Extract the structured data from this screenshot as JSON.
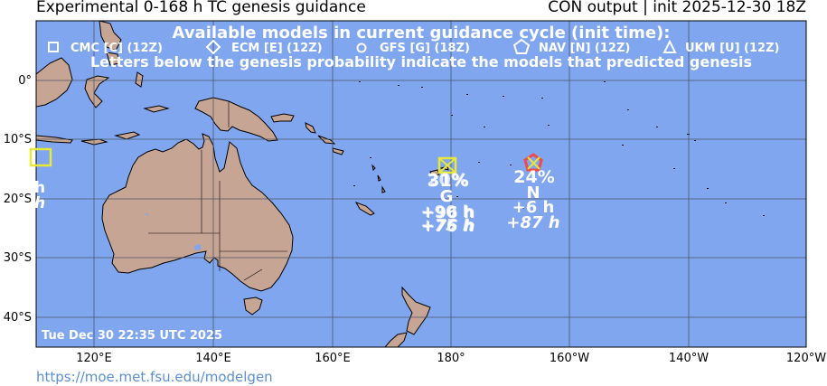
{
  "header": {
    "title": "Experimental 0-168 h TC genesis guidance",
    "subtitle": "CON output | init 2025-12-30 18Z"
  },
  "legend": {
    "heading": "Available models in current guidance cycle (init time):",
    "models": [
      {
        "symbol": "square",
        "label": "CMC [C] (12Z)"
      },
      {
        "symbol": "diamond",
        "label": "ECM [E] (12Z)"
      },
      {
        "symbol": "circle",
        "label": "GFS [G] (18Z)"
      },
      {
        "symbol": "pentagon",
        "label": "NAV [N] (12Z)"
      },
      {
        "symbol": "triangle",
        "label": "UKM [U] (12Z)"
      }
    ],
    "note": "Letters below the genesis probability indicate the models that predicted genesis"
  },
  "axes": {
    "lat_labels": [
      "0°",
      "10°S",
      "20°S",
      "30°S",
      "40°S"
    ],
    "lon_labels": [
      "120°E",
      "140°E",
      "160°E",
      "180°",
      "160°W",
      "140°W",
      "120°W"
    ]
  },
  "timestamp": "Tue Dec 30 22:35 UTC 2025",
  "footer_url": "https://moe.met.fsu.edu/modelgen",
  "colors": {
    "ocean": "#7fa6ef",
    "land": "#c7a594",
    "grid": "#4c5564",
    "marker_yellow": "#e8e838",
    "marker_red": "#f04a4a",
    "url": "#5b8fd6"
  },
  "systems": [
    {
      "prob": "31%",
      "prob_overlap": "20%",
      "models": "G",
      "lead_times": [
        "+90 h",
        "+96 h"
      ],
      "lead_times_italic": [
        "+75 h",
        "+76 h"
      ],
      "marker_color": "yellow"
    },
    {
      "prob": "24%",
      "models": "N",
      "lead_times": [
        "+6 h"
      ],
      "lead_times_italic": [
        "+87 h"
      ],
      "marker_color": "red-yellow"
    }
  ],
  "edge_marker": {
    "letters": [
      "h",
      "h"
    ],
    "marker_color": "yellow"
  }
}
